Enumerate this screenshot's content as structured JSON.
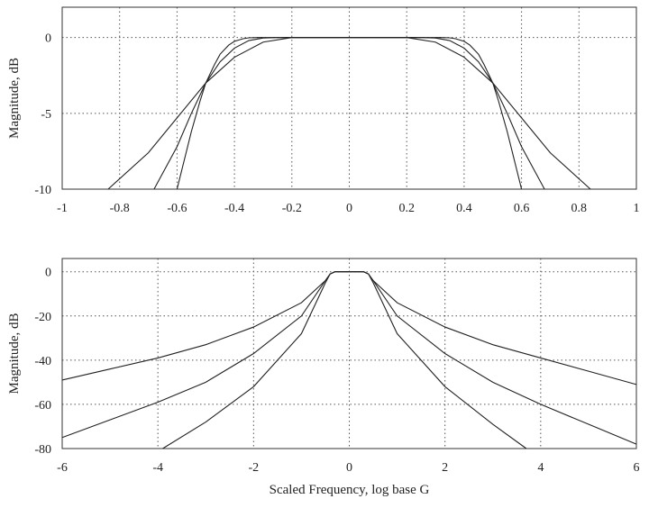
{
  "chart_data": [
    {
      "type": "line",
      "xlabel": "",
      "ylabel": "Magnitude, dB",
      "xlim": [
        -1,
        1
      ],
      "ylim": [
        -10,
        2
      ],
      "grid": true,
      "x_ticks": [
        -1,
        -0.8,
        -0.6,
        -0.4,
        -0.2,
        0,
        0.2,
        0.4,
        0.6,
        0.8,
        1
      ],
      "x_tick_labels": [
        "-1",
        "-0.8",
        "-0.6",
        "-0.4",
        "-0.2",
        "0",
        "0.2",
        "0.4",
        "0.6",
        "0.8",
        "1"
      ],
      "y_ticks": [
        0,
        -5,
        -10
      ],
      "y_tick_labels": [
        "0",
        "-5",
        "-10"
      ],
      "series": [
        {
          "x": [
            -0.84,
            -0.7,
            -0.6,
            -0.5,
            -0.4,
            -0.3,
            -0.2,
            0,
            0.2,
            0.3,
            0.4,
            0.5,
            0.6,
            0.7,
            0.84
          ],
          "y": [
            -10,
            -7.6,
            -5.3,
            -3.0,
            -1.3,
            -0.3,
            0,
            0,
            0,
            -0.3,
            -1.3,
            -3.0,
            -5.3,
            -7.6,
            -10
          ]
        },
        {
          "x": [
            -0.68,
            -0.6,
            -0.55,
            -0.5,
            -0.45,
            -0.4,
            -0.35,
            -0.3,
            -0.25,
            0,
            0.25,
            0.3,
            0.35,
            0.4,
            0.45,
            0.5,
            0.55,
            0.6,
            0.68
          ],
          "y": [
            -10,
            -7.2,
            -5.0,
            -3.0,
            -1.6,
            -0.7,
            -0.2,
            -0.03,
            0,
            0,
            0,
            -0.03,
            -0.2,
            -0.7,
            -1.6,
            -3.0,
            -5.0,
            -7.2,
            -10
          ]
        },
        {
          "x": [
            -0.6,
            -0.55,
            -0.52,
            -0.5,
            -0.47,
            -0.45,
            -0.42,
            -0.4,
            -0.37,
            -0.35,
            -0.32,
            -0.3,
            0,
            0.3,
            0.32,
            0.35,
            0.37,
            0.4,
            0.42,
            0.45,
            0.47,
            0.5,
            0.52,
            0.55,
            0.6
          ],
          "y": [
            -10,
            -6.2,
            -4.2,
            -3.0,
            -1.8,
            -1.1,
            -0.5,
            -0.25,
            -0.08,
            -0.02,
            0,
            0,
            0,
            0,
            0,
            -0.02,
            -0.08,
            -0.25,
            -0.5,
            -1.1,
            -1.8,
            -3.0,
            -4.2,
            -6.2,
            -10
          ]
        }
      ]
    },
    {
      "type": "line",
      "xlabel": "Scaled Frequency, log base G",
      "ylabel": "Magnitude, dB",
      "xlim": [
        -6,
        6
      ],
      "ylim": [
        -80,
        6
      ],
      "grid": true,
      "x_ticks": [
        -6,
        -4,
        -2,
        0,
        2,
        4,
        6
      ],
      "x_tick_labels": [
        "-6",
        "-4",
        "-2",
        "0",
        "2",
        "4",
        "6"
      ],
      "y_ticks": [
        0,
        -20,
        -40,
        -60,
        -80
      ],
      "y_tick_labels": [
        "0",
        "-20",
        "-40",
        "-60",
        "-80"
      ],
      "series": [
        {
          "x": [
            -6,
            -5,
            -4,
            -3,
            -2,
            -1,
            -0.5,
            -0.4,
            -0.3,
            0,
            0.3,
            0.4,
            0.5,
            1,
            2,
            3,
            4,
            5,
            6
          ],
          "y": [
            -49,
            -44,
            -39,
            -33,
            -25,
            -14,
            -4,
            -1,
            0,
            0,
            0,
            -1,
            -4,
            -14,
            -25,
            -33,
            -39,
            -45,
            -51
          ]
        },
        {
          "x": [
            -6,
            -5,
            -4,
            -3,
            -2,
            -1,
            -0.5,
            -0.4,
            -0.3,
            0,
            0.3,
            0.4,
            0.5,
            1,
            2,
            3,
            4,
            5,
            6
          ],
          "y": [
            -75,
            -67,
            -59,
            -50,
            -37,
            -20,
            -4,
            -1,
            0,
            0,
            0,
            -1,
            -4,
            -20,
            -37,
            -50,
            -60,
            -69,
            -78
          ]
        },
        {
          "x": [
            -3.9,
            -3,
            -2,
            -1,
            -0.5,
            -0.4,
            -0.3,
            0,
            0.3,
            0.4,
            0.5,
            1,
            2,
            3,
            3.7
          ],
          "y": [
            -80,
            -68,
            -52,
            -28,
            -5,
            -1,
            0,
            0,
            0,
            -1,
            -5,
            -28,
            -52,
            -69,
            -80
          ]
        }
      ]
    }
  ]
}
